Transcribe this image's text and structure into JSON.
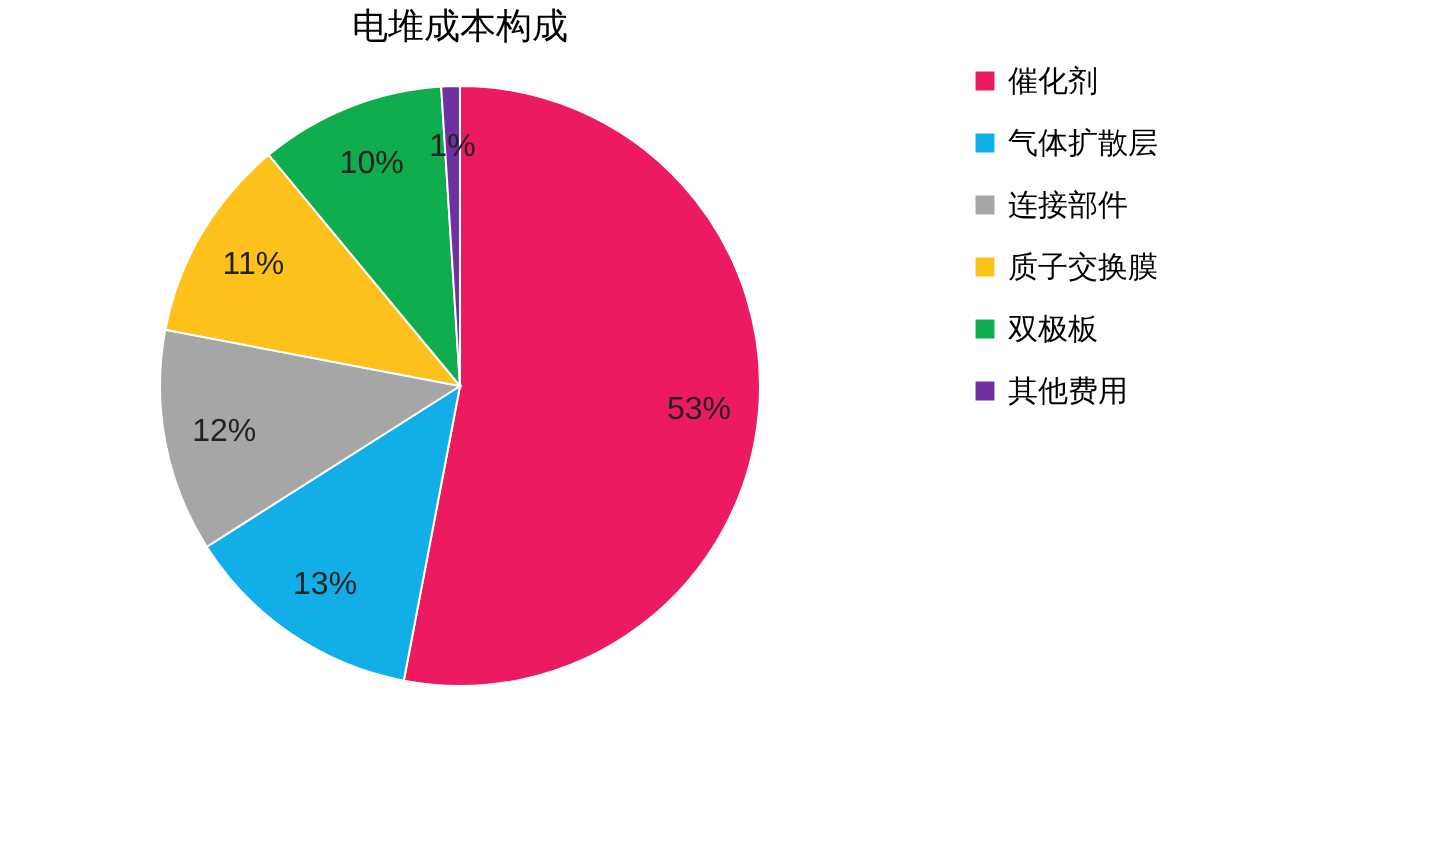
{
  "chart_data": {
    "type": "pie",
    "title": "电堆成本构成",
    "categories": [
      "催化剂",
      "气体扩散层",
      "连接部件",
      "质子交换膜",
      "双极板",
      "其他费用"
    ],
    "values": [
      53,
      13,
      12,
      11,
      10,
      1
    ],
    "value_labels": [
      "53%",
      "13%",
      "12%",
      "11%",
      "10%",
      "1%"
    ],
    "colors": [
      "#ec1a5e",
      "#12aee8",
      "#a6a6a6",
      "#fcc11a",
      "#10ad4f",
      "#7030a0"
    ],
    "legend": "right"
  }
}
